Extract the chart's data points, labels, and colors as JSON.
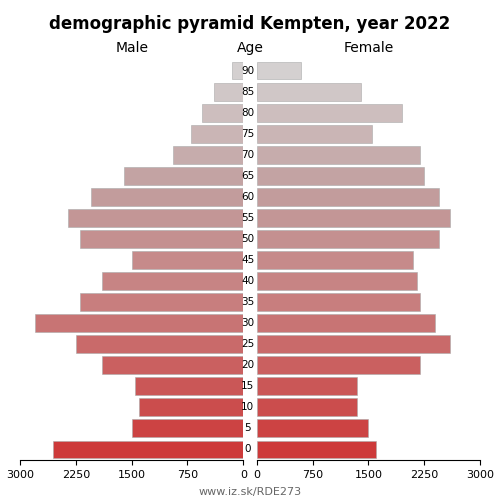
{
  "title": "demographic pyramid Kempten, year 2022",
  "label_left": "Male",
  "label_right": "Female",
  "label_center": "Age",
  "age_groups": [
    0,
    5,
    10,
    15,
    20,
    25,
    30,
    35,
    40,
    45,
    50,
    55,
    60,
    65,
    70,
    75,
    80,
    85,
    90
  ],
  "male": [
    2550,
    1500,
    1400,
    1450,
    1900,
    2250,
    2800,
    2200,
    1900,
    1500,
    2200,
    2350,
    2050,
    1600,
    950,
    700,
    550,
    400,
    150
  ],
  "female": [
    1600,
    1500,
    1350,
    1350,
    2200,
    2600,
    2400,
    2200,
    2150,
    2100,
    2450,
    2600,
    2450,
    2250,
    2200,
    1550,
    1950,
    1400,
    600
  ],
  "xlim": 3000,
  "xticks": [
    3000,
    2250,
    1500,
    750,
    0
  ],
  "xticks_right": [
    0,
    750,
    1500,
    2250,
    3000
  ],
  "footer": "www.iz.sk/RDE273",
  "bg_color": "#ffffff",
  "bar_height": 0.85,
  "figsize": [
    5.0,
    5.0
  ],
  "dpi": 100
}
